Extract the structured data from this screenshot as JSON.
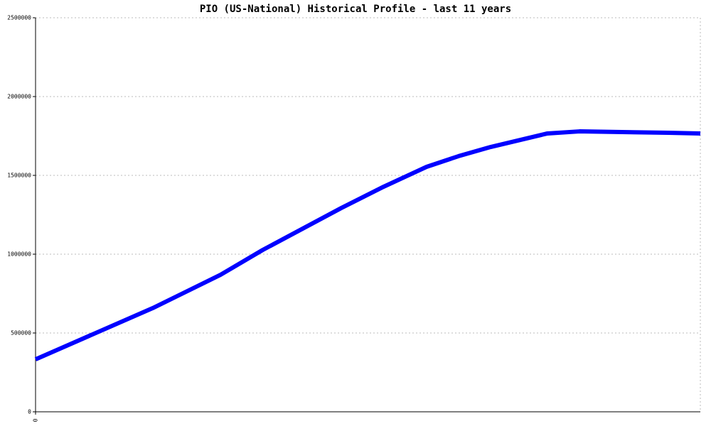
{
  "chart_data": {
    "type": "line",
    "title": "PIO (US-National) Historical Profile - last 11 years",
    "x": [
      0,
      1.94,
      3.06,
      3.76,
      5.06,
      5.76,
      6.47,
      7.0,
      7.53,
      8.47,
      9.0,
      10.47,
      11
    ],
    "series": [
      {
        "color": "#0000ff",
        "values": [
          333000,
          658000,
          869000,
          1027000,
          1293000,
          1428000,
          1554000,
          1622000,
          1680000,
          1766000,
          1779000,
          1770000,
          1766000
        ]
      }
    ],
    "xlim": [
      0,
      11
    ],
    "xticks": [
      0
    ],
    "ylim": [
      0,
      2500000
    ],
    "yticks": [
      0,
      500000,
      1000000,
      1500000,
      2000000,
      2500000
    ],
    "grid": true
  }
}
